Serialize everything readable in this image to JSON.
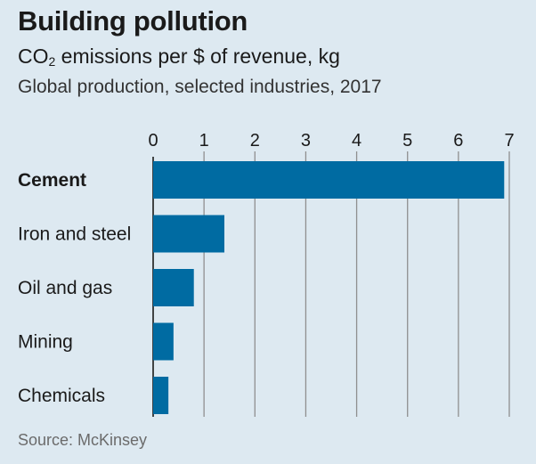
{
  "title": "Building pollution",
  "subtitle": {
    "prefix": "CO",
    "subscript": "2",
    "suffix": " emissions per $ of revenue, kg"
  },
  "note": "Global production, selected industries, 2017",
  "source": "Source: McKinsey",
  "colors": {
    "background": "#dde9f1",
    "bar": "#006ba2",
    "grid": "#8f8f8f",
    "axis": "#1a1a1a"
  },
  "chart_data": {
    "type": "bar",
    "orientation": "horizontal",
    "categories": [
      "Cement",
      "Iron and steel",
      "Oil and gas",
      "Mining",
      "Chemicals"
    ],
    "values": [
      6.9,
      1.4,
      0.8,
      0.4,
      0.3
    ],
    "highlighted": [
      "Cement"
    ],
    "xlim": [
      0,
      7
    ],
    "xticks": [
      0,
      1,
      2,
      3,
      4,
      5,
      6,
      7
    ],
    "xaxis_position": "top",
    "grid": true
  }
}
